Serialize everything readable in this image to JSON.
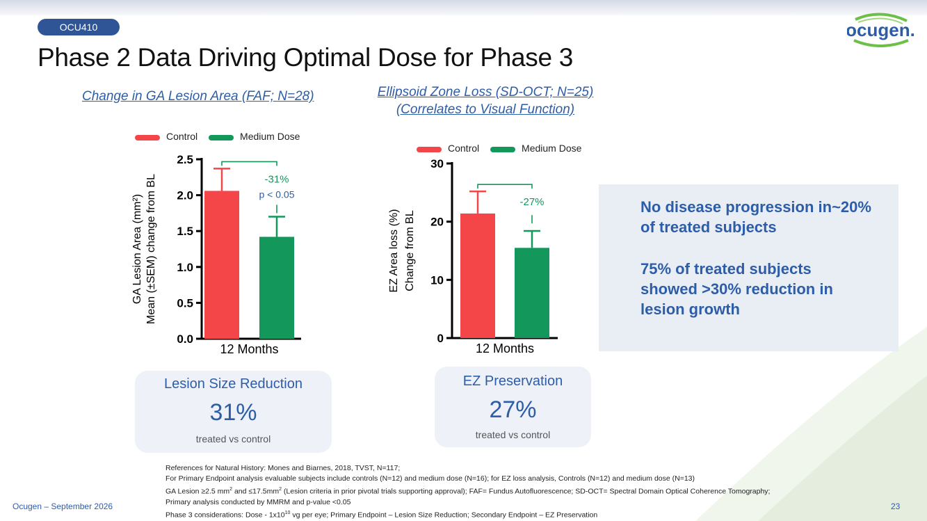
{
  "badge": "OCU410",
  "logo_text": "ocugen.",
  "title": "Phase 2 Data Driving Optimal Dose for Phase 3",
  "left_subtitle": "Change in GA Lesion Area (FAF; N=28)",
  "right_subtitle_line1": "Ellipsoid Zone Loss (SD-OCT; N=25)",
  "right_subtitle_line2": "(Correlates to Visual Function)",
  "colors": {
    "control": "#f44549",
    "medium_dose": "#13975a",
    "accent": "#2e5da8",
    "badge_bg": "#2f5597"
  },
  "chart_data": [
    {
      "type": "bar",
      "categories": [
        "12 Months"
      ],
      "series": [
        {
          "name": "Control",
          "values": [
            2.06
          ],
          "error": [
            0.31
          ]
        },
        {
          "name": "Medium Dose",
          "values": [
            1.42
          ],
          "error": [
            0.28
          ]
        }
      ],
      "ylabel_line1": "GA Lesion Area (mm²)",
      "ylabel_line2": "Mean (±SEM) change from BL",
      "ylim": [
        0,
        2.5
      ],
      "yticks": [
        "0.0",
        "0.5",
        "1.0",
        "1.5",
        "2.0",
        "2.5"
      ],
      "legend": [
        "Control",
        "Medium Dose"
      ],
      "annotations": {
        "pct": "-31%",
        "p": "p < 0.05"
      }
    },
    {
      "type": "bar",
      "categories": [
        "12 Months"
      ],
      "series": [
        {
          "name": "Control",
          "values": [
            21.4
          ],
          "error": [
            3.8
          ]
        },
        {
          "name": "Medium Dose",
          "values": [
            15.5
          ],
          "error": [
            2.9
          ]
        }
      ],
      "ylabel_line1": "EZ Area loss (%)",
      "ylabel_line2": "Change from BL",
      "ylim": [
        0,
        30
      ],
      "yticks": [
        "0",
        "10",
        "20",
        "30"
      ],
      "legend": [
        "Control",
        "Medium Dose"
      ],
      "annotations": {
        "pct": "-27%"
      }
    }
  ],
  "stat_left": {
    "heading": "Lesion Size Reduction",
    "value": "31%",
    "sub": "treated vs control"
  },
  "stat_right": {
    "heading": "EZ Preservation",
    "value": "27%",
    "sub": "treated vs control"
  },
  "callout": {
    "p1_line1": "No disease progression in~20%",
    "p1_line2": "of treated subjects",
    "p2_line1": "75% of treated subjects",
    "p2_line2": "showed >30% reduction in",
    "p2_line3": "lesion growth"
  },
  "references": {
    "line1": "References for Natural History: Mones and Biarnes, 2018, TVST, N=117;",
    "line2": "For Primary Endpoint analysis evaluable subjects include controls (N=12) and medium dose (N=16); for EZ loss analysis, Controls (N=12) and medium dose (N=13)",
    "line3_a": "GA Lesion ≥2.5 mm",
    "line3_sup1": "2",
    "line3_b": " and ≤17.5mm",
    "line3_sup2": "2",
    "line3_c": " (Lesion criteria in prior pivotal trials supporting approval); FAF= Fundus Autofluorescence; SD-OCT= Spectral Domain Optical Coherence Tomography;",
    "line4": "Primary analysis conducted by MMRM and p-value <0.05",
    "line5_a": "Phase 3 considerations: Dose - 1x10",
    "line5_sup": "10",
    "line5_b": " vg per eye; Primary Endpoint – Lesion Size Reduction; Secondary Endpoint – EZ Preservation"
  },
  "footer_left": "Ocugen – September 2026",
  "page_number": "23"
}
